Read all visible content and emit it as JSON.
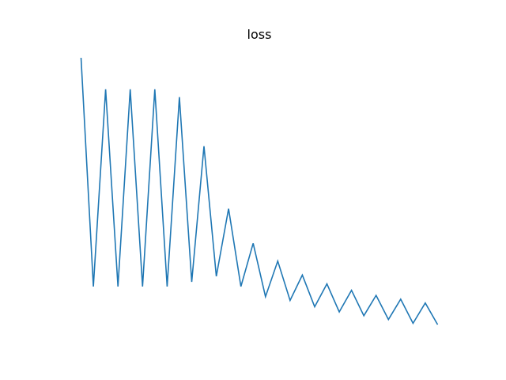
{
  "chart_data": {
    "type": "line",
    "title": "loss",
    "xlabel": "",
    "ylabel": "",
    "axes_visible": false,
    "grid": false,
    "legend": "none",
    "x": [
      0,
      1,
      2,
      3,
      4,
      5,
      6,
      7,
      8,
      9,
      10,
      11,
      12,
      13,
      14,
      15,
      16,
      17,
      18,
      19,
      20,
      21,
      22,
      23,
      24,
      25,
      26,
      27,
      28,
      29
    ],
    "series": [
      {
        "color": "#1f77b4",
        "values": [
          1.0,
          0.1,
          0.876,
          0.1,
          0.876,
          0.1,
          0.876,
          0.1,
          0.845,
          0.118,
          0.652,
          0.14,
          0.406,
          0.1,
          0.27,
          0.06,
          0.2,
          0.045,
          0.145,
          0.02,
          0.11,
          0.0,
          0.085,
          -0.015,
          0.065,
          -0.03,
          0.05,
          -0.045,
          0.035,
          -0.05
        ]
      }
    ]
  }
}
